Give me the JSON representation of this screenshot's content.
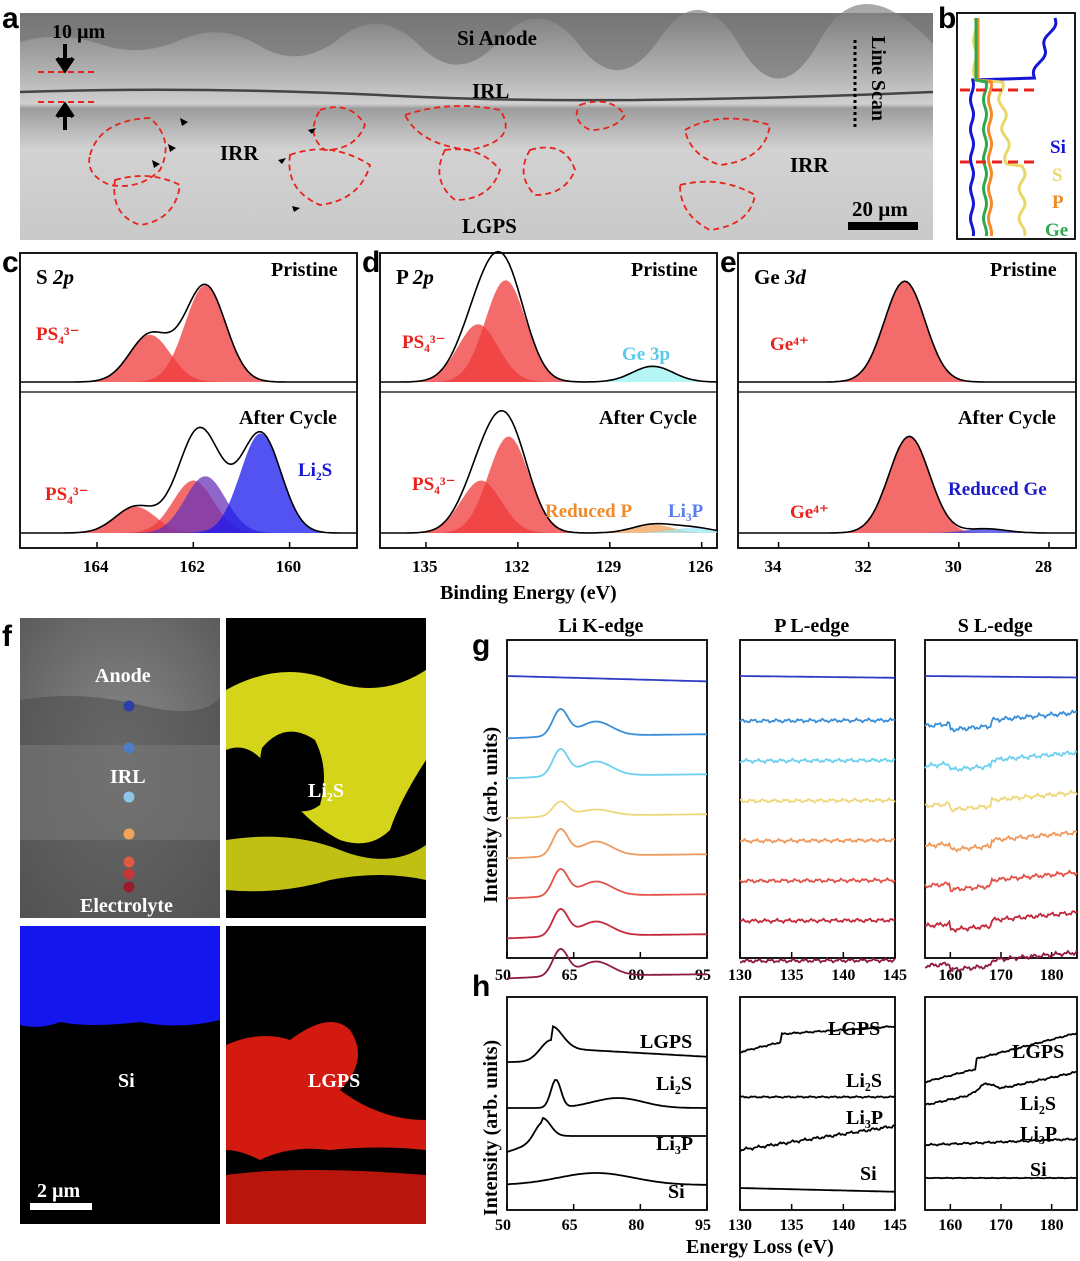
{
  "panel_letters": {
    "a": "a",
    "b": "b",
    "c": "c",
    "d": "d",
    "e": "e",
    "f": "f",
    "g": "g",
    "h": "h"
  },
  "panel_a": {
    "labels": {
      "si_anode": "Si Anode",
      "irl": "IRL",
      "irr_left": "IRR",
      "irr_right": "IRR",
      "lgps": "LGPS",
      "line_scan": "Line Scan",
      "thickness": "10 µm",
      "scale": "20 µm"
    },
    "colors": {
      "boundary": "#e8221c"
    }
  },
  "panel_b": {
    "legend": [
      "Si",
      "S",
      "P",
      "Ge"
    ],
    "colors": {
      "Si": "#1515d6",
      "S": "#e8d869",
      "P": "#f08a2a",
      "Ge": "#2ea84a",
      "divider": "#e8221c"
    }
  },
  "xps": {
    "xlabel": "Binding Energy (eV)",
    "chart_data": [
      {
        "type": "line",
        "panel": "c",
        "title": "S 2p",
        "top_label": "Pristine",
        "bottom_label": "After Cycle",
        "x_ticks": [
          "164",
          "162",
          "160"
        ],
        "xlim": [
          165.6,
          158.6
        ],
        "pristine": {
          "species": [
            "PS₄³⁻"
          ],
          "peaks": [
            {
              "name": "PS4 3-",
              "center": 162.9,
              "height": 0.45
            },
            {
              "name": "PS4 3-",
              "center": 161.75,
              "height": 0.92
            }
          ]
        },
        "cycled": {
          "species": [
            "PS₄³⁻",
            "Li₂S"
          ],
          "peaks": [
            {
              "name": "PS4 3-",
              "center": 163.2,
              "height": 0.25
            },
            {
              "name": "PS4 3-",
              "center": 162.0,
              "height": 0.5
            },
            {
              "name": "overlap",
              "center": 161.75,
              "height": 0.54
            },
            {
              "name": "Li2S",
              "center": 160.6,
              "height": 0.95
            }
          ]
        }
      },
      {
        "type": "line",
        "panel": "d",
        "title": "P 2p",
        "top_label": "Pristine",
        "bottom_label": "After Cycle",
        "x_ticks": [
          "135",
          "132",
          "129",
          "126"
        ],
        "xlim": [
          136.5,
          125.5
        ],
        "pristine": {
          "species": [
            "PS₄³⁻",
            "Ge 3p"
          ],
          "peaks": [
            {
              "name": "PS4 3-",
              "center": 133.3,
              "height": 0.55
            },
            {
              "name": "PS4 3-",
              "center": 132.4,
              "height": 0.97
            },
            {
              "name": "Ge 3p",
              "center": 127.6,
              "height": 0.15
            }
          ]
        },
        "cycled": {
          "species": [
            "PS₄³⁻",
            "Reduced P",
            "Li₃P"
          ],
          "peaks": [
            {
              "name": "PS4 3-",
              "center": 133.2,
              "height": 0.5
            },
            {
              "name": "PS4 3-",
              "center": 132.3,
              "height": 0.92
            },
            {
              "name": "Reduced P",
              "center": 127.6,
              "height": 0.08
            },
            {
              "name": "Li3P",
              "center": 126.3,
              "height": 0.05
            }
          ]
        }
      },
      {
        "type": "line",
        "panel": "e",
        "title": "Ge 3d",
        "top_label": "Pristine",
        "bottom_label": "After Cycle",
        "x_ticks": [
          "34",
          "32",
          "30",
          "28"
        ],
        "xlim": [
          34.9,
          27.4
        ],
        "pristine": {
          "species": [
            "Ge⁴⁺"
          ],
          "peaks": [
            {
              "name": "Ge4+",
              "center": 31.2,
              "height": 0.96
            }
          ]
        },
        "cycled": {
          "species": [
            "Ge⁴⁺",
            "Reduced Ge"
          ],
          "peaks": [
            {
              "name": "Ge4+",
              "center": 31.1,
              "height": 0.92
            },
            {
              "name": "Reduced Ge",
              "center": 29.4,
              "height": 0.04
            }
          ]
        }
      }
    ]
  },
  "panel_f": {
    "tiles": [
      {
        "label": "",
        "points": [
          "Anode",
          "IRL",
          "Electrolyte"
        ]
      },
      {
        "label": "Li₂S",
        "color": "#dada1c"
      },
      {
        "label": "Si",
        "color": "#1515ee"
      },
      {
        "label": "LGPS",
        "color": "#e21b10"
      }
    ],
    "scale": "2 µm",
    "dot_colors": [
      "#2a3fa8",
      "#4d7fc7",
      "#8fc4e8",
      "#f2a45a",
      "#e05a43",
      "#c93434",
      "#9a1a30"
    ]
  },
  "panel_g": {
    "ylabel": "Intensity (arb. units)",
    "chart_data": [
      {
        "type": "line",
        "title": "Li K-edge",
        "x_ticks": [
          "50",
          "65",
          "80",
          "95"
        ],
        "xlim": [
          50,
          95
        ]
      },
      {
        "type": "line",
        "title": "P L-edge",
        "x_ticks": [
          "130",
          "135",
          "140",
          "145"
        ],
        "xlim": [
          130,
          145
        ]
      },
      {
        "type": "line",
        "title": "S L-edge",
        "x_ticks": [
          "160",
          "170",
          "180"
        ],
        "xlim": [
          155,
          185
        ]
      }
    ],
    "series_colors": [
      "#2e3cc2",
      "#3a8fd8",
      "#6cd0ef",
      "#eed87c",
      "#ee9a5e",
      "#e2534a",
      "#c4283c",
      "#8e1a44"
    ]
  },
  "panel_h": {
    "ylabel": "Intensity (arb. units)",
    "xlabel": "Energy Loss (eV)",
    "chart_data": [
      {
        "type": "line",
        "panel": "Li K",
        "x_ticks": [
          "50",
          "65",
          "80",
          "95"
        ],
        "xlim": [
          50,
          95
        ],
        "series": [
          "LGPS",
          "Li₂S",
          "Li₃P",
          "Si"
        ]
      },
      {
        "type": "line",
        "panel": "P L",
        "x_ticks": [
          "130",
          "135",
          "140",
          "145"
        ],
        "xlim": [
          130,
          145
        ],
        "series": [
          "LGPS",
          "Li₂S",
          "Li₃P",
          "Si"
        ]
      },
      {
        "type": "line",
        "panel": "S L",
        "x_ticks": [
          "160",
          "170",
          "180"
        ],
        "xlim": [
          155,
          185
        ],
        "series": [
          "LGPS",
          "Li₂S",
          "Li₃P",
          "Si"
        ]
      }
    ]
  }
}
